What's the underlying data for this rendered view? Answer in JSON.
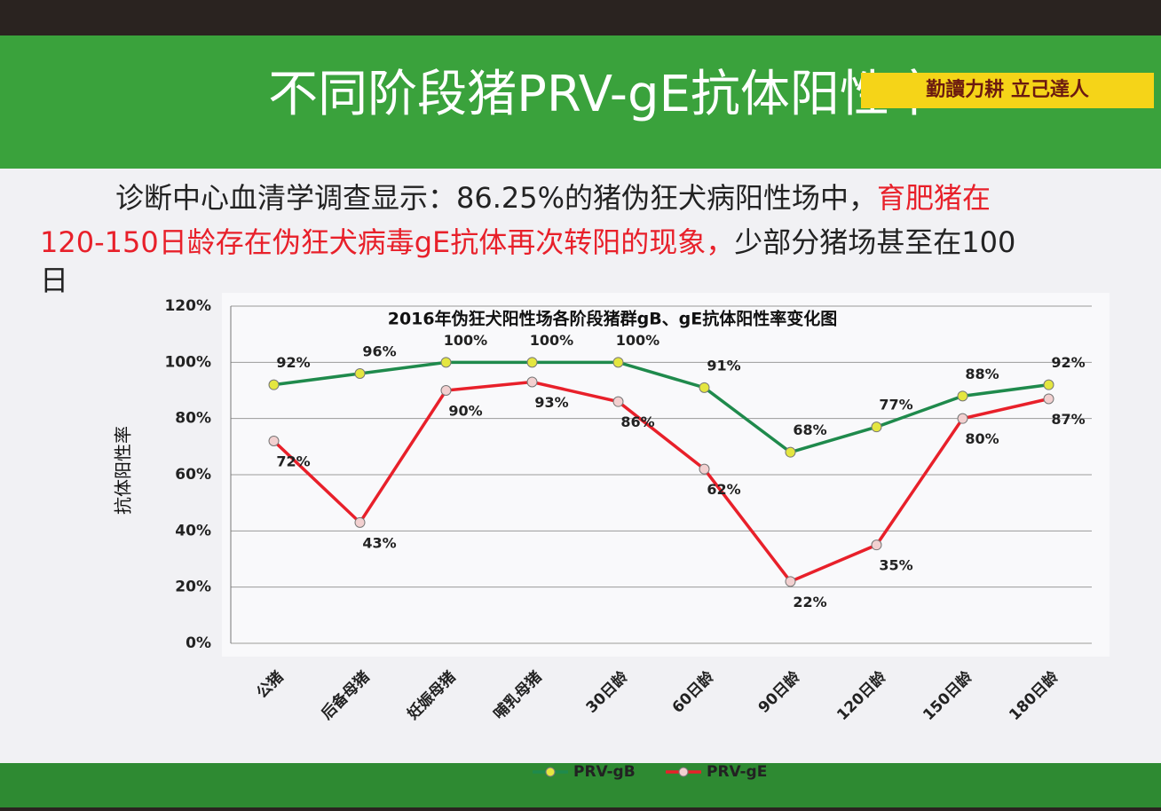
{
  "slide": {
    "title": "不同阶段猪PRV-gE抗体阳性率",
    "motto": "勤讀力耕  立己達人",
    "lines": [
      [
        {
          "text": "诊断中心血清学调查显示：86.25%的猪伪狂犬病阳性场中，",
          "color": "#222222"
        },
        {
          "text": "育肥猪在",
          "color": "#e8202a"
        }
      ],
      [
        {
          "text": "120-150日龄存在伪狂犬病毒gE抗体再次转阳的现象，",
          "color": "#e8202a"
        },
        {
          "text": "少部分猪场甚至在100",
          "color": "#222222"
        }
      ],
      [
        {
          "text": "日",
          "color": "#222222"
        }
      ]
    ]
  },
  "chart_data": {
    "type": "line",
    "title": "2016年伪狂犬阳性场各阶段猪群gB、gE抗体阳性率变化图",
    "y_label": "抗体阳性率",
    "categories": [
      "公猪",
      "后备母猪",
      "妊娠母猪",
      "哺乳母猪",
      "30日龄",
      "60日龄",
      "90日龄",
      "120日龄",
      "150日龄",
      "180日龄"
    ],
    "series": [
      {
        "name": "PRV-gB",
        "color": "#1f8a4c",
        "marker": "#e4e640",
        "values": [
          92,
          96,
          100,
          100,
          100,
          91,
          68,
          77,
          88,
          92
        ],
        "value_labels": [
          "92%",
          "96%",
          "100%",
          "100%",
          "100%",
          "91%",
          "68%",
          "77%",
          "88%",
          "92%"
        ]
      },
      {
        "name": "PRV-gE",
        "color": "#e8202a",
        "marker": "#f2d0d0",
        "values": [
          72,
          43,
          90,
          93,
          86,
          62,
          22,
          35,
          80,
          87
        ],
        "value_labels": [
          "72%",
          "43%",
          "90%",
          "93%",
          "86%",
          "62%",
          "22%",
          "35%",
          "80%",
          "87%"
        ]
      }
    ],
    "ylim": [
      0,
      120
    ],
    "yticks": [
      {
        "value": 0,
        "label": "0%"
      },
      {
        "value": 20,
        "label": "20%"
      },
      {
        "value": 40,
        "label": "40%"
      },
      {
        "value": 60,
        "label": "60%"
      },
      {
        "value": 80,
        "label": "80%"
      },
      {
        "value": 100,
        "label": "100%"
      },
      {
        "value": 120,
        "label": "120%"
      }
    ],
    "grid": true,
    "legend": "bottom"
  }
}
